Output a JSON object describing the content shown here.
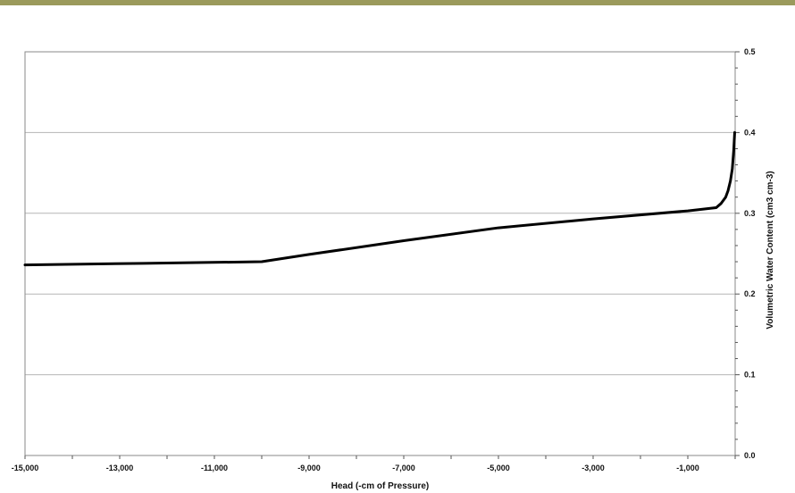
{
  "theme": {
    "band_color": "#9b9a5c",
    "plot_border_color": "#8a8a8a",
    "grid_color": "#b5b5b5",
    "line_color": "#000000"
  },
  "chart_data": {
    "type": "line",
    "title": "",
    "xlabel": "Head (-cm of Pressure)",
    "ylabel": "Volumetric Water Content  (cm3 cm-3)",
    "xlim": [
      -15000,
      0
    ],
    "ylim": [
      0,
      0.5
    ],
    "y_axis_side": "right",
    "grid": "horizontal",
    "legend": "none",
    "x_ticks": [
      -15000,
      -13000,
      -11000,
      -9000,
      -7000,
      -5000,
      -3000,
      -1000
    ],
    "x_tick_labels": [
      "-15,000",
      "-13,000",
      "-11,000",
      "-9,000",
      "-7,000",
      "-5,000",
      "-3,000",
      "-1,000"
    ],
    "y_ticks": [
      0,
      0.1,
      0.2,
      0.3,
      0.4,
      0.5
    ],
    "y_tick_labels": [
      "0.0",
      "0.1",
      "0.2",
      "0.3",
      "0.4",
      "0.5"
    ],
    "series": [
      {
        "x": [
          -15000,
          -12500,
          -10000,
          -9000,
          -7000,
          -5000,
          -3000,
          -1000,
          -400,
          -300,
          -200,
          -150,
          -100,
          -60,
          -30,
          -10
        ],
        "y": [
          0.236,
          0.238,
          0.24,
          0.249,
          0.266,
          0.282,
          0.293,
          0.303,
          0.307,
          0.312,
          0.32,
          0.328,
          0.34,
          0.355,
          0.378,
          0.4
        ]
      }
    ]
  }
}
